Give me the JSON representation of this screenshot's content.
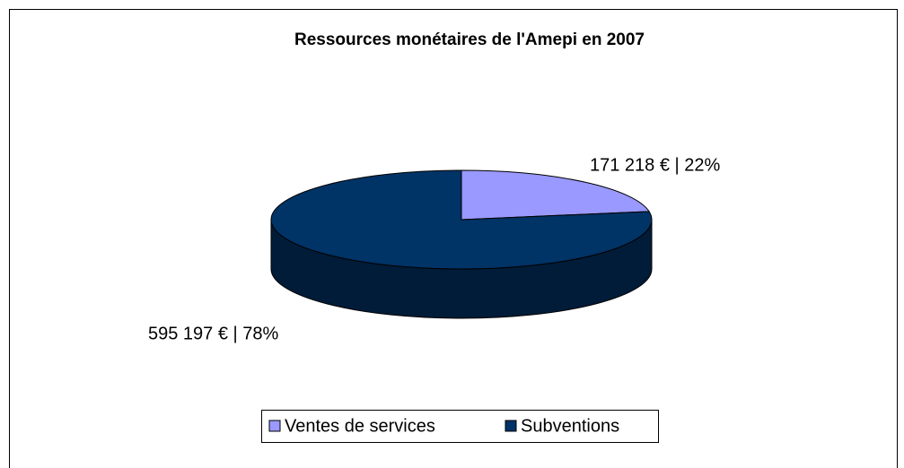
{
  "chart_data": {
    "type": "pie",
    "title": "Ressources monétaires de l'Amepi en 2007",
    "categories": [
      "Ventes de services",
      "Subventions"
    ],
    "values": [
      171218,
      595197
    ],
    "value_labels": [
      "171 218 € | 22%",
      "595 197 € | 78%"
    ],
    "colors": [
      "#9999ff",
      "#003366"
    ],
    "legend": "bottom"
  }
}
